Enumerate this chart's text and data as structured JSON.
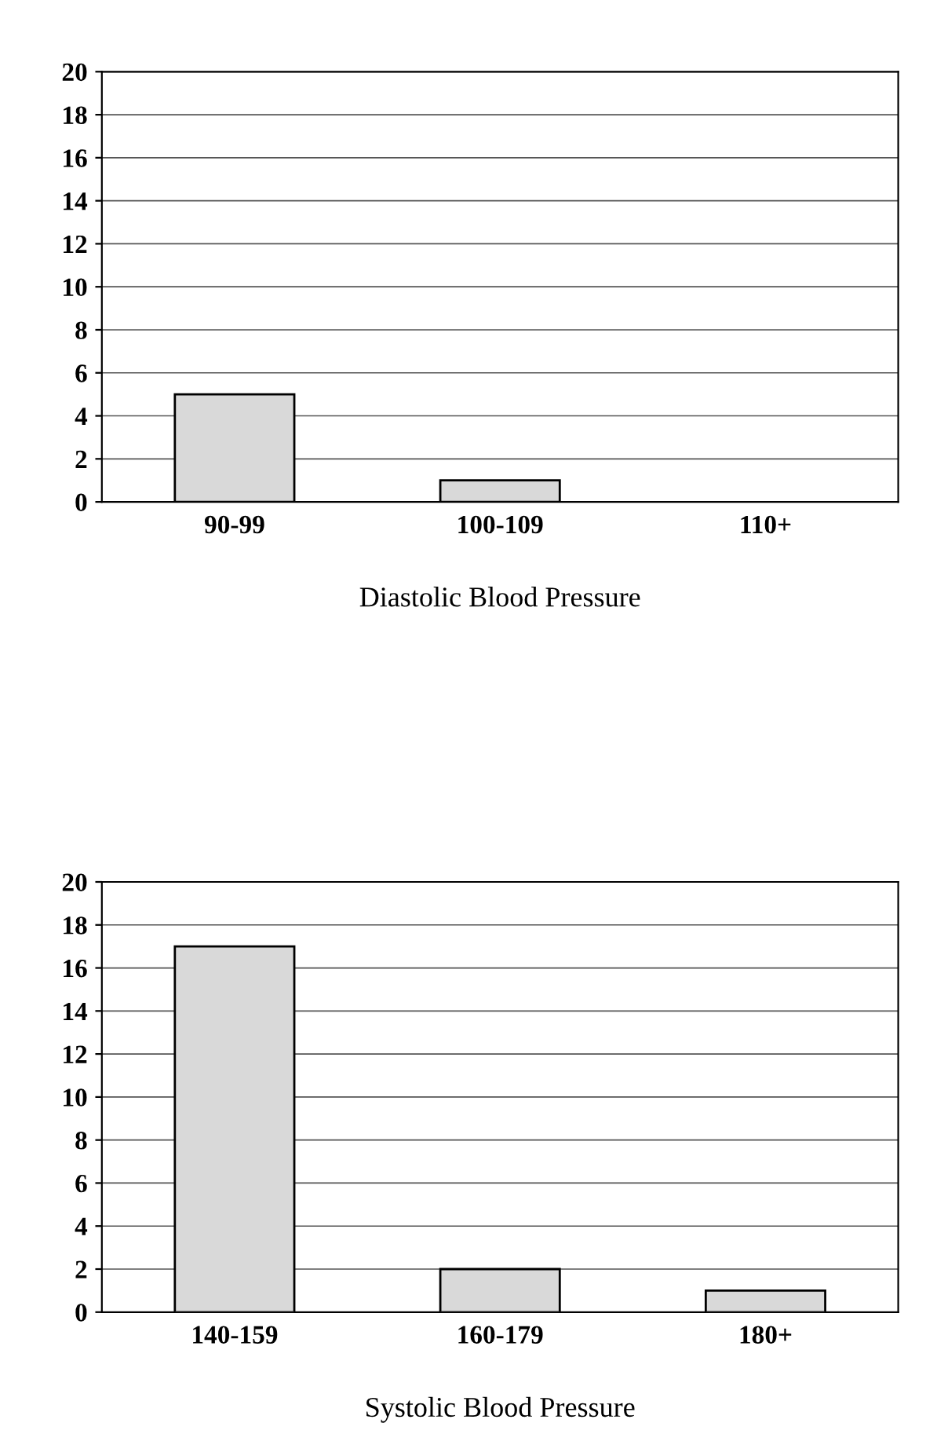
{
  "chart_data": [
    {
      "type": "bar",
      "xlabel": "Diastolic Blood Pressure",
      "categories": [
        "90-99",
        "100-109",
        "110+"
      ],
      "values": [
        5,
        1,
        0
      ],
      "color": "#d9d9d9",
      "ylim": [
        0,
        20
      ],
      "yticks": [
        0,
        2,
        4,
        6,
        8,
        10,
        12,
        14,
        16,
        18,
        20
      ],
      "grid": "y"
    },
    {
      "type": "bar",
      "xlabel": "Systolic Blood Pressure",
      "categories": [
        "140-159",
        "160-179",
        "180+"
      ],
      "values": [
        17,
        2,
        1
      ],
      "color": "#d9d9d9",
      "ylim": [
        0,
        20
      ],
      "yticks": [
        0,
        2,
        4,
        6,
        8,
        10,
        12,
        14,
        16,
        18,
        20
      ],
      "grid": "y"
    }
  ]
}
